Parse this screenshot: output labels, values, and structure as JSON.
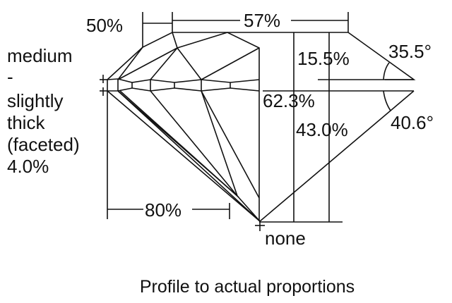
{
  "labels": {
    "crown_star_width": "50%",
    "table": "57%",
    "girdle_lines": [
      "medium",
      "-",
      "slightly",
      "thick",
      "(faceted)",
      "4.0%"
    ],
    "crown_height": "15.5%",
    "crown_angle": "35.5°",
    "total_depth": "62.3%",
    "pavilion_depth": "43.0%",
    "pavilion_angle": "40.6°",
    "lower_half": "80%",
    "culet": "none"
  },
  "caption": "Profile to actual proportions"
}
